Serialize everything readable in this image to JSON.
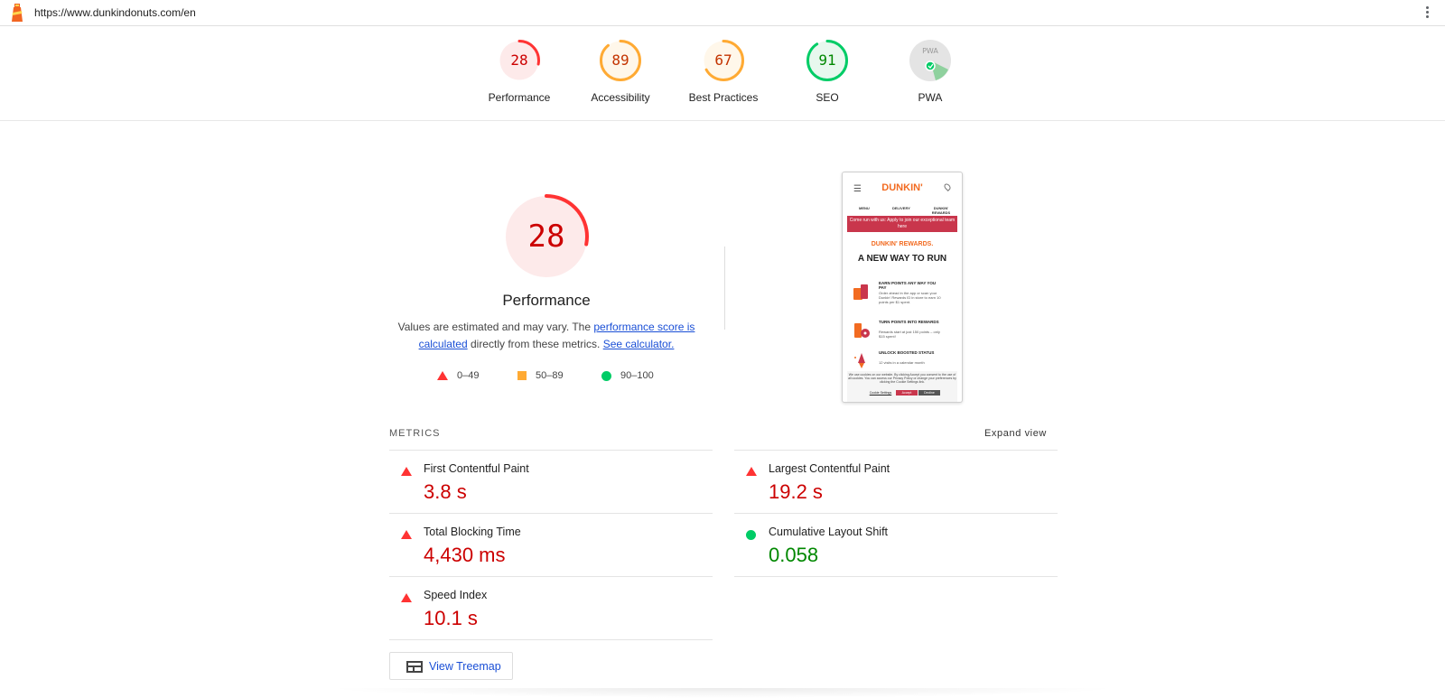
{
  "topbar": {
    "url": "https://www.dunkindonuts.com/en",
    "logo_icon": "lighthouse-icon",
    "menu_icon": "kebab-menu-icon"
  },
  "categories": [
    {
      "label": "Performance",
      "score": "28",
      "value": 28,
      "status": "fail",
      "color": "#c00",
      "ring": "#f33",
      "fill": "#fdeaea"
    },
    {
      "label": "Accessibility",
      "score": "89",
      "value": 89,
      "status": "average",
      "color": "#c33300",
      "ring": "#fa3",
      "fill": "#fff7ea"
    },
    {
      "label": "Best Practices",
      "score": "67",
      "value": 67,
      "status": "average",
      "color": "#c33300",
      "ring": "#fa3",
      "fill": "#fff7ea"
    },
    {
      "label": "SEO",
      "score": "91",
      "value": 91,
      "status": "pass",
      "color": "#080",
      "ring": "#0c6",
      "fill": "#e8f8ee"
    },
    {
      "label": "PWA",
      "score": "PWA",
      "value": null,
      "status": "pwa",
      "color": "#999",
      "ring": "#ccc",
      "fill": "#e6e6e6"
    }
  ],
  "performance": {
    "score": "28",
    "value": 28,
    "title": "Performance",
    "desc_prefix": "Values are estimated and may vary. The ",
    "desc_link": "performance score is calculated",
    "desc_middle": " directly from these metrics. ",
    "desc_link2": "See calculator.",
    "legend": [
      {
        "shape": "triangle",
        "range": "0–49"
      },
      {
        "shape": "square",
        "range": "50–89"
      },
      {
        "shape": "circle",
        "range": "90–100"
      }
    ]
  },
  "screenshot": {
    "brand": "DUNKIN'",
    "nav": [
      "MENU",
      "DELIVERY",
      "DUNKIN' REWARDS"
    ],
    "banner": "Come run with us: Apply to join our exceptional team here",
    "rewards": "DUNKIN' REWARDS.",
    "headline": "A NEW WAY TO RUN",
    "rows": [
      {
        "title": "EARN POINTS ANY WAY YOU PAY",
        "sub": "Order ahead in the app or scan your Dunkin' Rewards ID in store to earn 10 points per $1 spent."
      },
      {
        "title": "TURN POINTS INTO REWARDS",
        "sub": "Rewards start at just 150 points – only $15 spent!"
      },
      {
        "title": "UNLOCK BOOSTED STATUS",
        "sub": "12 visits in a calendar month"
      }
    ],
    "cookie_text": "We use cookies on our website. By clicking Accept you consent to the use of all cookies. You can access our Privacy Policy or change your preferences by clicking the Cookie Settings link.",
    "cookie_settings": "Cookie Settings",
    "cookie_accept": "Accept",
    "cookie_decline": "Decline"
  },
  "metrics_section": {
    "label": "METRICS",
    "expand": "Expand view",
    "left": [
      {
        "name": "First Contentful Paint",
        "value": "3.8 s",
        "status": "fail"
      },
      {
        "name": "Total Blocking Time",
        "value": "4,430 ms",
        "status": "fail"
      },
      {
        "name": "Speed Index",
        "value": "10.1 s",
        "status": "fail"
      }
    ],
    "right": [
      {
        "name": "Largest Contentful Paint",
        "value": "19.2 s",
        "status": "fail"
      },
      {
        "name": "Cumulative Layout Shift",
        "value": "0.058",
        "status": "pass"
      }
    ]
  },
  "treemap": {
    "label": "View Treemap",
    "icon": "treemap-icon"
  },
  "colors": {
    "fail": "#c00",
    "fail_icon": "#f33",
    "average": "#fa3",
    "pass": "#080",
    "pass_icon": "#0c6",
    "link": "#1a4fd6"
  }
}
